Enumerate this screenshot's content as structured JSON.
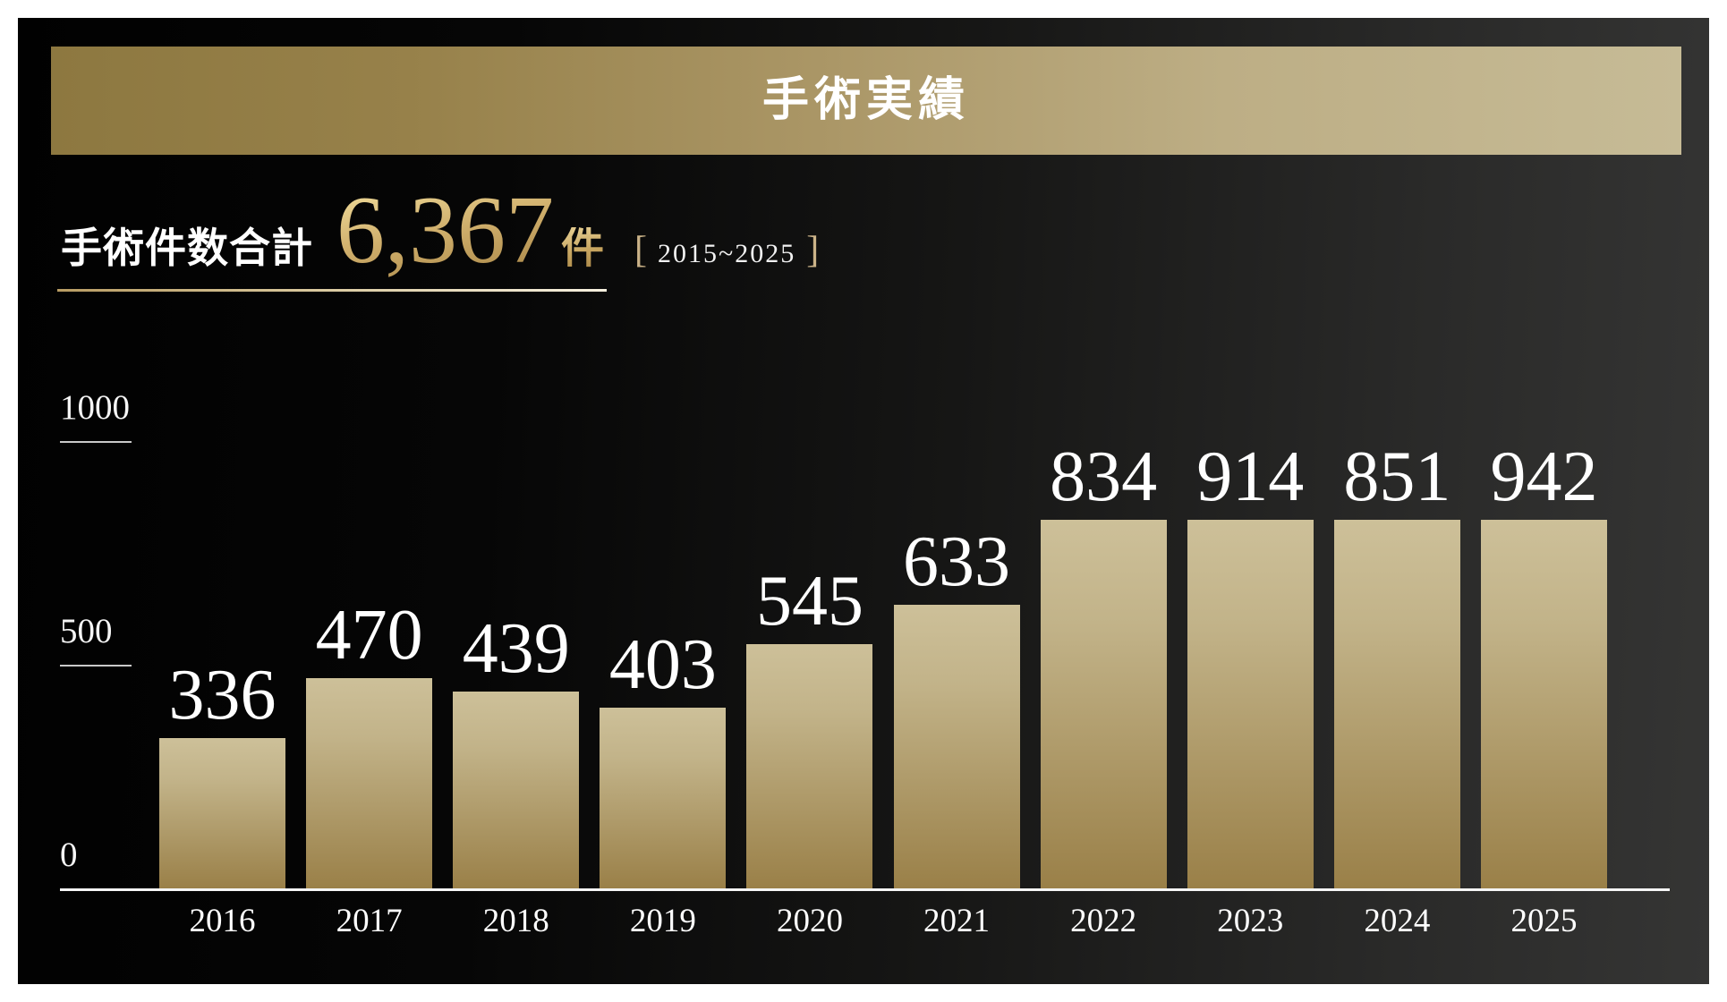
{
  "header": {
    "title": "手術実績"
  },
  "summary": {
    "label": "手術件数合計",
    "total": "6,367",
    "unit": "件",
    "bracket_left": "[",
    "bracket_right": "]",
    "period": "2015~2025"
  },
  "chart_data": {
    "type": "bar",
    "title": "手術実績",
    "xlabel": "",
    "ylabel": "",
    "categories": [
      "2016",
      "2017",
      "2018",
      "2019",
      "2020",
      "2021",
      "2022",
      "2023",
      "2024",
      "2025"
    ],
    "values": [
      336,
      470,
      439,
      403,
      545,
      633,
      834,
      914,
      851,
      942
    ],
    "ylim": [
      0,
      1000
    ],
    "yticks": [
      0,
      500,
      1000
    ],
    "grid": "short tick lines at 500 and 1000, full baseline at 0",
    "legend": "none",
    "value_labels": "above each bar"
  },
  "colors": {
    "page_background": "#ffffff",
    "panel_background_left": "#010101",
    "panel_background_right": "#353534",
    "banner_gold_left": "#8d7840",
    "banner_gold_right": "#c6bb96",
    "bar_gradient_top": "#cdc099",
    "bar_gradient_bottom": "#9a8048",
    "gold_text_light": "#eed998",
    "gold_text_dark": "#a98748",
    "bracket_gold": "#cbb388",
    "underline_left": "#b89c63",
    "underline_right": "#f6f0df",
    "axis_line": "#f5f5f5",
    "tick_line": "#c9c9c9",
    "text_white": "#ffffff"
  }
}
